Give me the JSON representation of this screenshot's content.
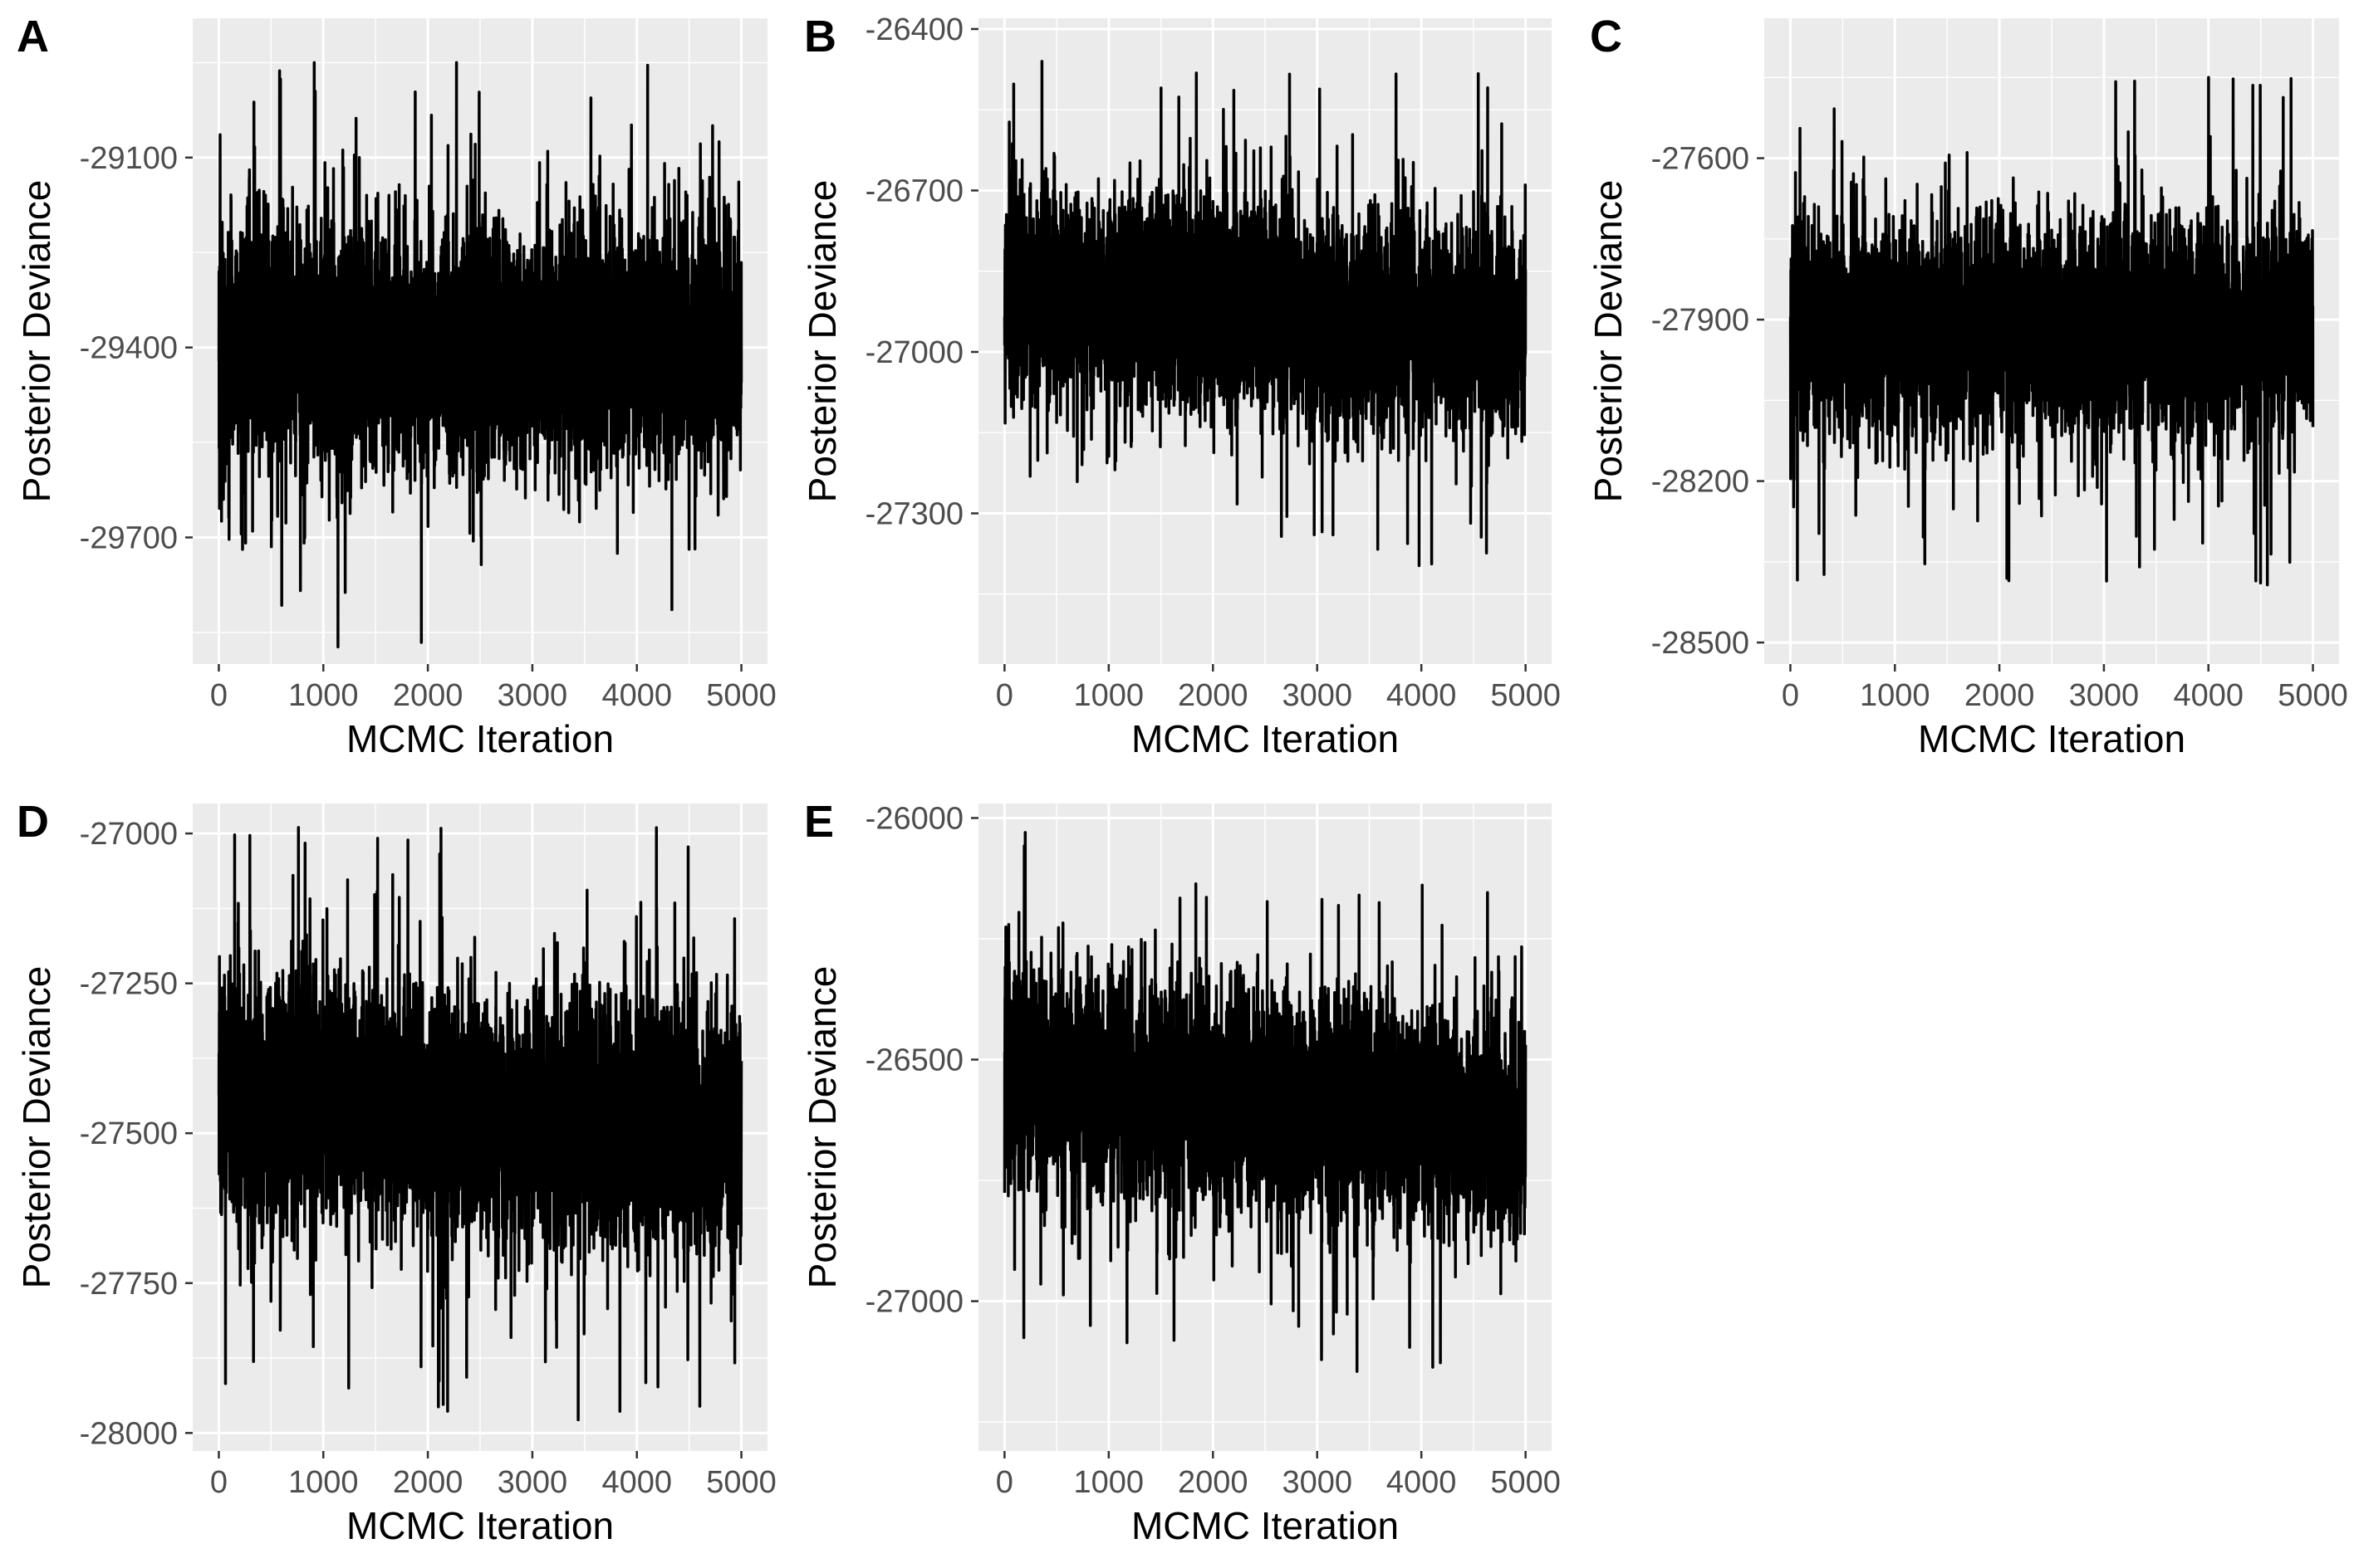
{
  "chart_data": [
    {
      "panel": "A",
      "type": "line",
      "title": "",
      "xlabel": "MCMC Iteration",
      "ylabel": "Posterior Deviance",
      "xlim": [
        -250,
        5250
      ],
      "ylim": [
        -29900,
        -28880
      ],
      "xticks": [
        0,
        1000,
        2000,
        3000,
        4000,
        5000
      ],
      "yticks": [
        -29100,
        -29400,
        -29700
      ],
      "series": [
        {
          "name": "trace",
          "n": 5000,
          "mean": -29400,
          "sd": 95,
          "min": -29880,
          "max": -28950,
          "trend": [
            -29400,
            -29400
          ]
        }
      ]
    },
    {
      "panel": "B",
      "type": "line",
      "title": "",
      "xlabel": "MCMC Iteration",
      "ylabel": "Posterior Deviance",
      "xlim": [
        -250,
        5250
      ],
      "ylim": [
        -27580,
        -26380
      ],
      "xticks": [
        0,
        1000,
        2000,
        3000,
        4000,
        5000
      ],
      "yticks": [
        -26400,
        -26700,
        -27000,
        -27300
      ],
      "series": [
        {
          "name": "trace",
          "n": 5000,
          "mean": -26910,
          "sd": 95,
          "min": -27560,
          "max": -26460,
          "trend": [
            -26890,
            -26960
          ]
        }
      ]
    },
    {
      "panel": "C",
      "type": "line",
      "title": "",
      "xlabel": "MCMC Iteration",
      "ylabel": "Posterior Deviance",
      "xlim": [
        -250,
        5250
      ],
      "ylim": [
        -28540,
        -27340
      ],
      "xticks": [
        0,
        1000,
        2000,
        3000,
        4000,
        5000
      ],
      "yticks": [
        -27600,
        -27900,
        -28200,
        -28500
      ],
      "series": [
        {
          "name": "trace",
          "n": 5000,
          "mean": -27920,
          "sd": 95,
          "min": -28490,
          "max": -27390,
          "trend": [
            -27920,
            -27920
          ]
        }
      ]
    },
    {
      "panel": "D",
      "type": "line",
      "title": "",
      "xlabel": "MCMC Iteration",
      "ylabel": "Posterior Deviance",
      "xlim": [
        -250,
        5250
      ],
      "ylim": [
        -28030,
        -26950
      ],
      "xticks": [
        0,
        1000,
        2000,
        3000,
        4000,
        5000
      ],
      "yticks": [
        -27000,
        -27250,
        -27500,
        -27750,
        -28000
      ],
      "series": [
        {
          "name": "trace",
          "n": 5000,
          "mean": -27450,
          "sd": 100,
          "min": -28010,
          "max": -26990,
          "trend": [
            -27440,
            -27500
          ]
        }
      ]
    },
    {
      "panel": "E",
      "type": "line",
      "title": "",
      "xlabel": "MCMC Iteration",
      "ylabel": "Posterior Deviance",
      "xlim": [
        -250,
        5250
      ],
      "ylim": [
        -27310,
        -25970
      ],
      "xticks": [
        0,
        1000,
        2000,
        3000,
        4000,
        5000
      ],
      "yticks": [
        -26000,
        -26500,
        -27000
      ],
      "series": [
        {
          "name": "trace",
          "n": 5000,
          "mean": -26560,
          "sd": 110,
          "min": -27300,
          "max": -26030,
          "trend": [
            -26540,
            -26640
          ]
        }
      ]
    }
  ]
}
